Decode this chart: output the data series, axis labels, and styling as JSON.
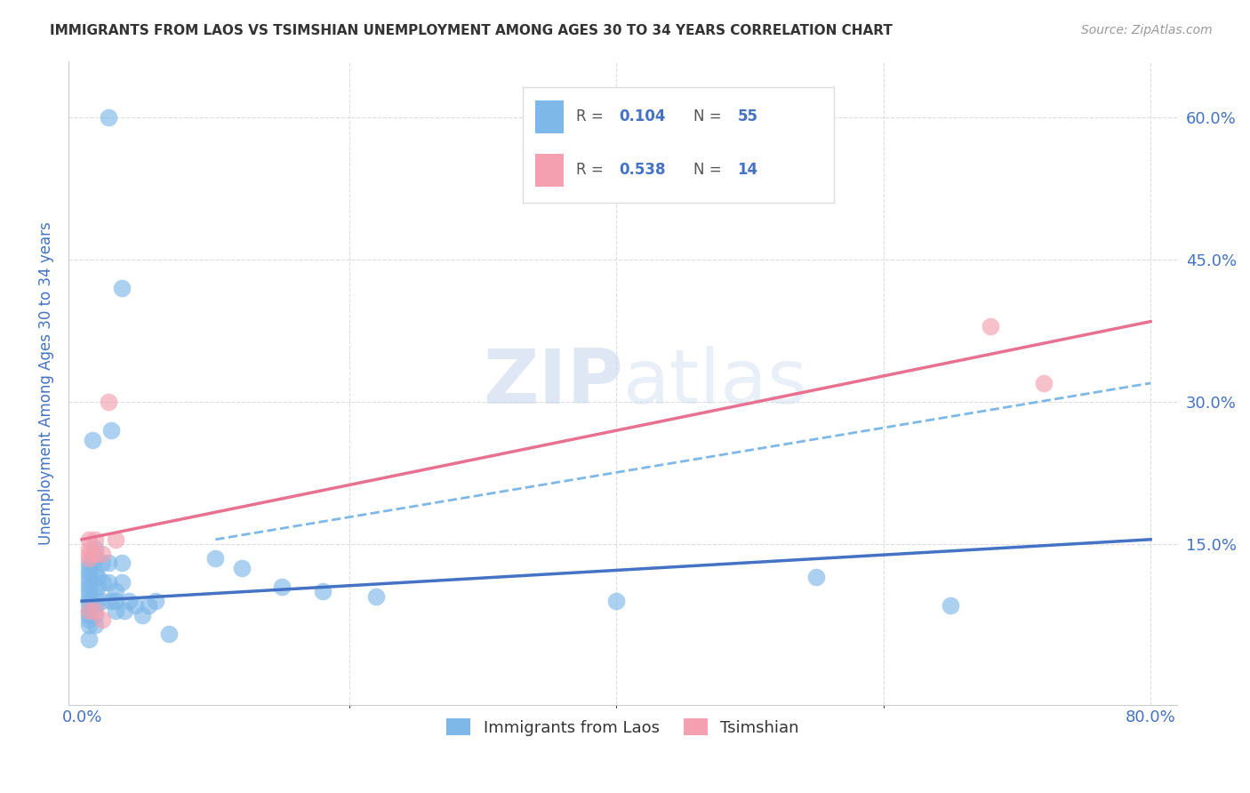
{
  "title": "IMMIGRANTS FROM LAOS VS TSIMSHIAN UNEMPLOYMENT AMONG AGES 30 TO 34 YEARS CORRELATION CHART",
  "source": "Source: ZipAtlas.com",
  "xlabel_ticks_show": [
    "0.0%",
    "80.0%"
  ],
  "xlabel_tick_vals_show": [
    0.0,
    0.8
  ],
  "xlabel_tick_vals_grid": [
    0.2,
    0.4,
    0.6,
    0.8
  ],
  "ylabel": "Unemployment Among Ages 30 to 34 years",
  "ylabel_ticks": [
    "15.0%",
    "30.0%",
    "45.0%",
    "60.0%"
  ],
  "ylabel_tick_vals": [
    0.15,
    0.3,
    0.45,
    0.6
  ],
  "xlim": [
    -0.01,
    0.82
  ],
  "ylim": [
    -0.02,
    0.66
  ],
  "watermark_line1": "ZIP",
  "watermark_line2": "atlas",
  "blue_R": "0.104",
  "blue_N": "55",
  "pink_R": "0.538",
  "pink_N": "14",
  "blue_color": "#7EB8E8",
  "pink_color": "#F4A0B0",
  "blue_line_color": "#4472C4",
  "pink_line_color": "#E87090",
  "trendline_dash_color": "#7EB8E8",
  "blue_scatter_x": [
    0.02,
    0.03,
    0.022,
    0.008,
    0.005,
    0.008,
    0.005,
    0.005,
    0.005,
    0.005,
    0.005,
    0.005,
    0.005,
    0.005,
    0.005,
    0.005,
    0.005,
    0.005,
    0.005,
    0.005,
    0.01,
    0.01,
    0.01,
    0.012,
    0.012,
    0.01,
    0.01,
    0.01,
    0.01,
    0.015,
    0.016,
    0.015,
    0.02,
    0.02,
    0.022,
    0.025,
    0.025,
    0.025,
    0.03,
    0.03,
    0.032,
    0.035,
    0.04,
    0.045,
    0.05,
    0.055,
    0.065,
    0.1,
    0.12,
    0.15,
    0.18,
    0.22,
    0.4,
    0.55,
    0.65
  ],
  "blue_scatter_y": [
    0.6,
    0.42,
    0.27,
    0.26,
    0.13,
    0.13,
    0.125,
    0.12,
    0.115,
    0.11,
    0.105,
    0.1,
    0.095,
    0.09,
    0.085,
    0.08,
    0.075,
    0.07,
    0.065,
    0.05,
    0.145,
    0.135,
    0.12,
    0.115,
    0.105,
    0.095,
    0.085,
    0.075,
    0.065,
    0.13,
    0.11,
    0.09,
    0.13,
    0.11,
    0.09,
    0.1,
    0.09,
    0.08,
    0.13,
    0.11,
    0.08,
    0.09,
    0.085,
    0.075,
    0.085,
    0.09,
    0.055,
    0.135,
    0.125,
    0.105,
    0.1,
    0.095,
    0.09,
    0.115,
    0.085
  ],
  "pink_scatter_x": [
    0.005,
    0.005,
    0.005,
    0.005,
    0.005,
    0.01,
    0.01,
    0.01,
    0.015,
    0.015,
    0.02,
    0.025,
    0.68,
    0.72
  ],
  "pink_scatter_y": [
    0.155,
    0.145,
    0.14,
    0.135,
    0.08,
    0.155,
    0.14,
    0.08,
    0.14,
    0.07,
    0.3,
    0.155,
    0.38,
    0.32
  ],
  "blue_trendline_x": [
    0.0,
    0.8
  ],
  "blue_trendline_y": [
    0.09,
    0.155
  ],
  "pink_trendline_x": [
    0.0,
    0.8
  ],
  "pink_trendline_y": [
    0.155,
    0.385
  ],
  "dash_trendline_x": [
    0.1,
    0.8
  ],
  "dash_trendline_y": [
    0.155,
    0.32
  ],
  "legend_label_blue": "Immigrants from Laos",
  "legend_label_pink": "Tsimshian",
  "background_color": "#FFFFFF",
  "grid_color": "#DDDDDD",
  "title_color": "#333333",
  "axis_label_color": "#4472C4",
  "tick_label_color": "#4472C4"
}
